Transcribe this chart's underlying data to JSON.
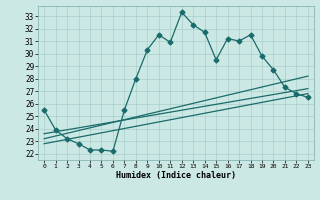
{
  "xlabel": "Humidex (Indice chaleur)",
  "ylabel": "",
  "xlim": [
    -0.5,
    23.5
  ],
  "ylim": [
    21.5,
    33.8
  ],
  "xticks": [
    0,
    1,
    2,
    3,
    4,
    5,
    6,
    7,
    8,
    9,
    10,
    11,
    12,
    13,
    14,
    15,
    16,
    17,
    18,
    19,
    20,
    21,
    22,
    23
  ],
  "yticks": [
    22,
    23,
    24,
    25,
    26,
    27,
    28,
    29,
    30,
    31,
    32,
    33
  ],
  "bg_color": "#cce8e4",
  "line_color": "#1a6b6b",
  "grid_color": "#aacfcc",
  "line1_x": [
    0,
    1,
    2,
    3,
    4,
    5,
    6,
    7,
    8,
    9,
    10,
    11,
    12,
    13,
    14,
    15,
    16,
    17,
    18,
    19,
    20,
    21,
    22,
    23
  ],
  "line1_y": [
    25.5,
    23.9,
    23.2,
    22.8,
    22.3,
    22.3,
    22.2,
    25.5,
    28.0,
    30.3,
    31.5,
    30.9,
    33.3,
    32.3,
    31.7,
    29.5,
    31.2,
    31.0,
    31.5,
    29.8,
    28.7,
    27.3,
    26.8,
    26.5
  ],
  "line2_x": [
    0,
    23
  ],
  "line2_y": [
    23.2,
    28.2
  ],
  "line3_x": [
    0,
    23
  ],
  "line3_y": [
    22.8,
    26.8
  ],
  "line4_x": [
    0,
    23
  ],
  "line4_y": [
    23.6,
    27.2
  ]
}
